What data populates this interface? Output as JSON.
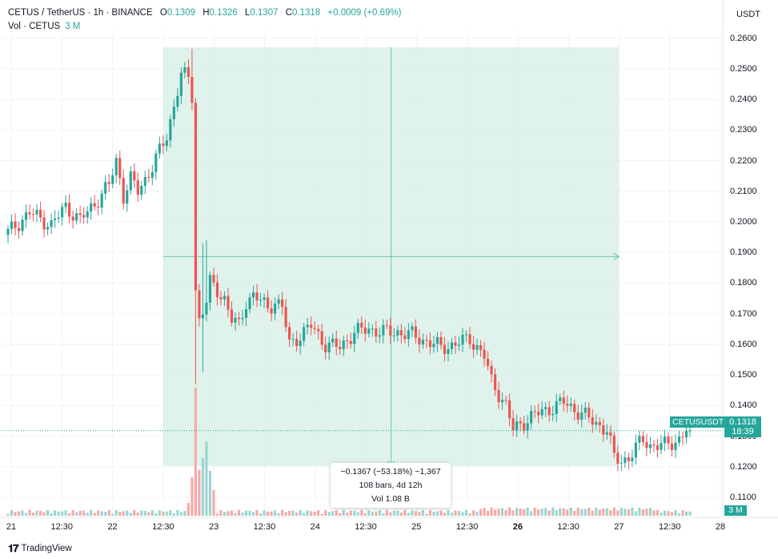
{
  "legend": {
    "symbol": "CETUS / TetherUS · 1h · BINANCE",
    "o_label": "O",
    "o_value": "0.1309",
    "h_label": "H",
    "h_value": "0.1326",
    "l_label": "L",
    "l_value": "0.1307",
    "c_label": "C",
    "c_value": "0.1318",
    "change": "+0.0009 (+0.69%)",
    "vol_label": "Vol · CETUS",
    "vol_value": "3 M"
  },
  "currency": "USDT",
  "price_tag": {
    "symbol": "CETUSUSDT",
    "price": "0.1318",
    "countdown": "18:39"
  },
  "volume_tag": "3 M",
  "measure": {
    "line1": "−0.1367 (−53.18%) −1,367",
    "line2": "108 bars, 4d 12h",
    "line3": "Vol 1.08 B"
  },
  "footer": {
    "brand": "TradingView"
  },
  "colors": {
    "up": "#26a69a",
    "down": "#ef5350",
    "measure_fill": "#d9f0e7"
  },
  "chart_data": {
    "type": "candlestick",
    "timeframe": "1h",
    "y_ticks": [
      "0.2600",
      "0.2500",
      "0.2400",
      "0.2300",
      "0.2200",
      "0.2100",
      "0.2000",
      "0.1900",
      "0.1800",
      "0.1700",
      "0.1600",
      "0.1500",
      "0.1400",
      "0.1300",
      "0.1200",
      "0.1100"
    ],
    "ylim": [
      0.1035,
      0.2625
    ],
    "x_ticks": [
      {
        "label": "21",
        "bold": false
      },
      {
        "label": "12:30",
        "bold": false
      },
      {
        "label": "22",
        "bold": false
      },
      {
        "label": "12:30",
        "bold": false
      },
      {
        "label": "23",
        "bold": false
      },
      {
        "label": "12:30",
        "bold": false
      },
      {
        "label": "24",
        "bold": false
      },
      {
        "label": "12:30",
        "bold": false
      },
      {
        "label": "25",
        "bold": false
      },
      {
        "label": "12:30",
        "bold": false
      },
      {
        "label": "26",
        "bold": true
      },
      {
        "label": "12:30",
        "bold": false
      },
      {
        "label": "27",
        "bold": false
      },
      {
        "label": "12:30",
        "bold": false
      },
      {
        "label": "28",
        "bold": false
      }
    ],
    "last_price": 0.1318,
    "measure_range": {
      "from_price": 0.257,
      "to_price": 0.1203
    },
    "close_path": [
      [
        0,
        0.1965
      ],
      [
        6,
        0.203
      ],
      [
        12,
        0.199
      ],
      [
        16,
        0.205
      ],
      [
        20,
        0.2005
      ],
      [
        24,
        0.206
      ],
      [
        28,
        0.212
      ],
      [
        30,
        0.22
      ],
      [
        32,
        0.2085
      ],
      [
        34,
        0.214
      ],
      [
        36,
        0.21
      ],
      [
        40,
        0.218
      ],
      [
        44,
        0.228
      ],
      [
        46,
        0.238
      ],
      [
        48,
        0.248
      ],
      [
        50,
        0.247
      ],
      [
        51,
        0.241
      ],
      [
        52,
        0.178
      ],
      [
        53,
        0.168
      ],
      [
        55,
        0.174
      ],
      [
        56,
        0.18
      ],
      [
        60,
        0.175
      ],
      [
        62,
        0.168
      ],
      [
        64,
        0.166
      ],
      [
        66,
        0.174
      ],
      [
        68,
        0.176
      ],
      [
        72,
        0.172
      ],
      [
        74,
        0.174
      ],
      [
        76,
        0.172
      ],
      [
        78,
        0.16
      ],
      [
        80,
        0.162
      ],
      [
        84,
        0.166
      ],
      [
        88,
        0.16
      ],
      [
        92,
        0.159
      ],
      [
        96,
        0.164
      ],
      [
        100,
        0.165
      ],
      [
        104,
        0.164
      ],
      [
        108,
        0.164
      ],
      [
        112,
        0.163
      ],
      [
        116,
        0.161
      ],
      [
        120,
        0.159
      ],
      [
        124,
        0.16
      ],
      [
        128,
        0.162
      ],
      [
        132,
        0.156
      ],
      [
        134,
        0.148
      ],
      [
        138,
        0.14
      ],
      [
        140,
        0.132
      ],
      [
        142,
        0.134
      ],
      [
        146,
        0.137
      ],
      [
        150,
        0.139
      ],
      [
        154,
        0.141
      ],
      [
        158,
        0.138
      ],
      [
        162,
        0.135
      ],
      [
        166,
        0.132
      ],
      [
        168,
        0.123
      ],
      [
        170,
        0.122
      ],
      [
        172,
        0.123
      ],
      [
        174,
        0.126
      ],
      [
        176,
        0.129
      ],
      [
        178,
        0.127
      ],
      [
        182,
        0.127
      ],
      [
        186,
        0.129
      ],
      [
        188,
        0.1318
      ]
    ],
    "volume_series": {
      "name": "Vol · CETUS",
      "spikes": [
        [
          50,
          0.1
        ],
        [
          51,
          0.3
        ],
        [
          52,
          1.0
        ],
        [
          53,
          0.36
        ],
        [
          54,
          0.45
        ],
        [
          55,
          0.58
        ],
        [
          56,
          0.35
        ],
        [
          57,
          0.2
        ]
      ]
    }
  }
}
